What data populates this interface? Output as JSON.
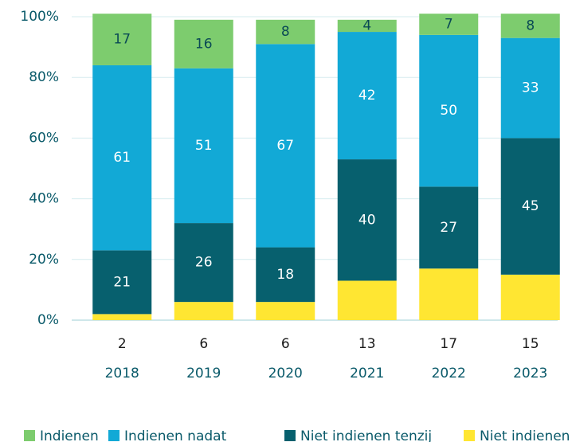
{
  "chart_data": {
    "type": "stacked_bar",
    "categories": [
      "2018",
      "2019",
      "2020",
      "2021",
      "2022",
      "2023"
    ],
    "series": [
      {
        "name": "Niet indienen",
        "color": "#ffe632",
        "values": [
          2,
          6,
          6,
          13,
          17,
          15
        ]
      },
      {
        "name": "Niet indienen tenzij",
        "color": "#07606e",
        "values": [
          21,
          26,
          18,
          40,
          27,
          45
        ]
      },
      {
        "name": "Indienen nadat",
        "color": "#12a9d6",
        "values": [
          61,
          51,
          67,
          42,
          50,
          33
        ]
      },
      {
        "name": "Indienen",
        "color": "#7dcc6e",
        "values": [
          17,
          16,
          8,
          4,
          7,
          8
        ]
      }
    ],
    "ylim": [
      0,
      100
    ],
    "yticks": [
      {
        "value": 0,
        "label": "0%"
      },
      {
        "value": 20,
        "label": "20%"
      },
      {
        "value": 40,
        "label": "40%"
      },
      {
        "value": 60,
        "label": "60%"
      },
      {
        "value": 80,
        "label": "80%"
      },
      {
        "value": 100,
        "label": "100%"
      }
    ],
    "grid": true
  }
}
